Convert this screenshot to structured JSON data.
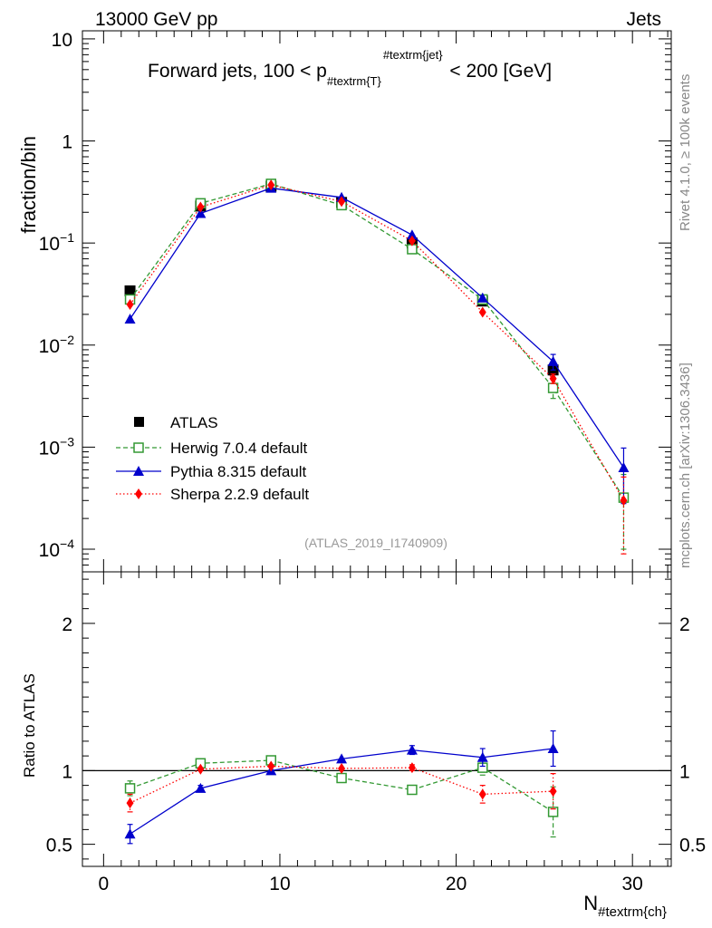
{
  "header": {
    "energy_label": "13000 GeV pp",
    "category_label": "Jets"
  },
  "side_labels": {
    "version": "Rivet 4.1.0, ≥ 100k events",
    "source": "mcplots.cern.ch [arXiv:1306.3436]"
  },
  "chart_data": [
    {
      "type": "line",
      "panel": "main",
      "title_parts": [
        "Forward jets, 100 < p",
        "#textrm{T}",
        "#textrm{jet}",
        " < 200 [GeV]"
      ],
      "ylabel": "fraction/bin",
      "yscale": "log",
      "ylim": [
        6e-05,
        12
      ],
      "y_ticks": [
        0.0001,
        0.001,
        0.01,
        0.1,
        1,
        10
      ],
      "y_tick_labels": [
        {
          "base": "10",
          "exp": "−4"
        },
        {
          "base": "10",
          "exp": "−3"
        },
        {
          "base": "10",
          "exp": "−2"
        },
        {
          "base": "10",
          "exp": "−1"
        },
        {
          "base": "1",
          "exp": ""
        },
        {
          "base": "10",
          "exp": ""
        }
      ],
      "analysis_id": "(ATLAS_2019_I1740909)",
      "x": [
        1.5,
        5.5,
        9.5,
        13.5,
        17.5,
        21.5,
        25.5,
        29.5
      ],
      "series": [
        {
          "name": "ATLAS",
          "marker": "square-filled",
          "color": "#000000",
          "line": "none",
          "x": [
            1.5,
            5.5,
            9.5,
            13.5,
            17.5,
            21.5,
            25.5
          ],
          "values": [
            0.034,
            0.23,
            0.36,
            0.25,
            0.1,
            0.027,
            0.0057
          ]
        },
        {
          "name": "Herwig 7.0.4 default",
          "marker": "square-open",
          "color": "#339933",
          "line": "dashed",
          "x": [
            1.5,
            5.5,
            9.5,
            13.5,
            17.5,
            21.5,
            25.5,
            29.5
          ],
          "values": [
            0.028,
            0.245,
            0.38,
            0.235,
            0.087,
            0.028,
            0.0038,
            0.00032
          ],
          "errors": [
            0,
            0,
            0,
            0,
            0,
            0,
            0.0008,
            0.00022
          ]
        },
        {
          "name": "Pythia 8.315 default",
          "marker": "triangle-filled",
          "color": "#0000cc",
          "line": "solid",
          "x": [
            1.5,
            5.5,
            9.5,
            13.5,
            17.5,
            21.5,
            25.5,
            29.5
          ],
          "values": [
            0.018,
            0.195,
            0.345,
            0.28,
            0.12,
            0.029,
            0.0069,
            0.00063
          ],
          "errors": [
            0,
            0,
            0,
            0,
            0,
            0,
            0.0012,
            0.00035
          ]
        },
        {
          "name": "Sherpa 2.2.9 default",
          "marker": "diamond-filled",
          "color": "#ff0000",
          "line": "dotted",
          "x": [
            1.5,
            5.5,
            9.5,
            13.5,
            17.5,
            21.5,
            25.5,
            29.5
          ],
          "values": [
            0.025,
            0.225,
            0.37,
            0.255,
            0.105,
            0.021,
            0.0047,
            0.0003
          ],
          "errors": [
            0,
            0,
            0,
            0,
            0,
            0,
            0.0005,
            0.00021
          ]
        }
      ]
    },
    {
      "type": "line",
      "panel": "ratio",
      "ylabel": "Ratio to ATLAS",
      "xlabel_parts": [
        "N",
        "#textrm{ch}"
      ],
      "ylim": [
        0.35,
        2.35
      ],
      "xlim": [
        -1.2,
        32.2
      ],
      "x_ticks": [
        0,
        10,
        20,
        30
      ],
      "x_tick_labels": [
        "0",
        "10",
        "20",
        "30"
      ],
      "y_ticks": [
        0.5,
        1,
        2
      ],
      "y_tick_labels": [
        "0.5",
        "1",
        "2"
      ],
      "reference_line": 1,
      "x": [
        1.5,
        5.5,
        9.5,
        13.5,
        17.5,
        21.5,
        25.5
      ],
      "series": [
        {
          "name": "Herwig 7.0.4 default",
          "color": "#339933",
          "line": "dashed",
          "marker": "square-open",
          "values": [
            0.88,
            1.05,
            1.07,
            0.95,
            0.87,
            1.02,
            0.72
          ],
          "errors": [
            0.05,
            0,
            0,
            0,
            0.025,
            0.05,
            0.17
          ]
        },
        {
          "name": "Pythia 8.315 default",
          "color": "#0000cc",
          "line": "solid",
          "marker": "triangle-filled",
          "values": [
            0.57,
            0.88,
            1.0,
            1.08,
            1.14,
            1.09,
            1.15
          ],
          "errors": [
            0.065,
            0.02,
            0,
            0,
            0.03,
            0.06,
            0.12
          ]
        },
        {
          "name": "Sherpa 2.2.9 default",
          "color": "#ff0000",
          "line": "dotted",
          "marker": "diamond-filled",
          "values": [
            0.78,
            1.01,
            1.03,
            1.015,
            1.02,
            0.84,
            0.86
          ],
          "errors": [
            0.06,
            0,
            0,
            0,
            0.02,
            0.06,
            0.12
          ]
        }
      ]
    }
  ]
}
